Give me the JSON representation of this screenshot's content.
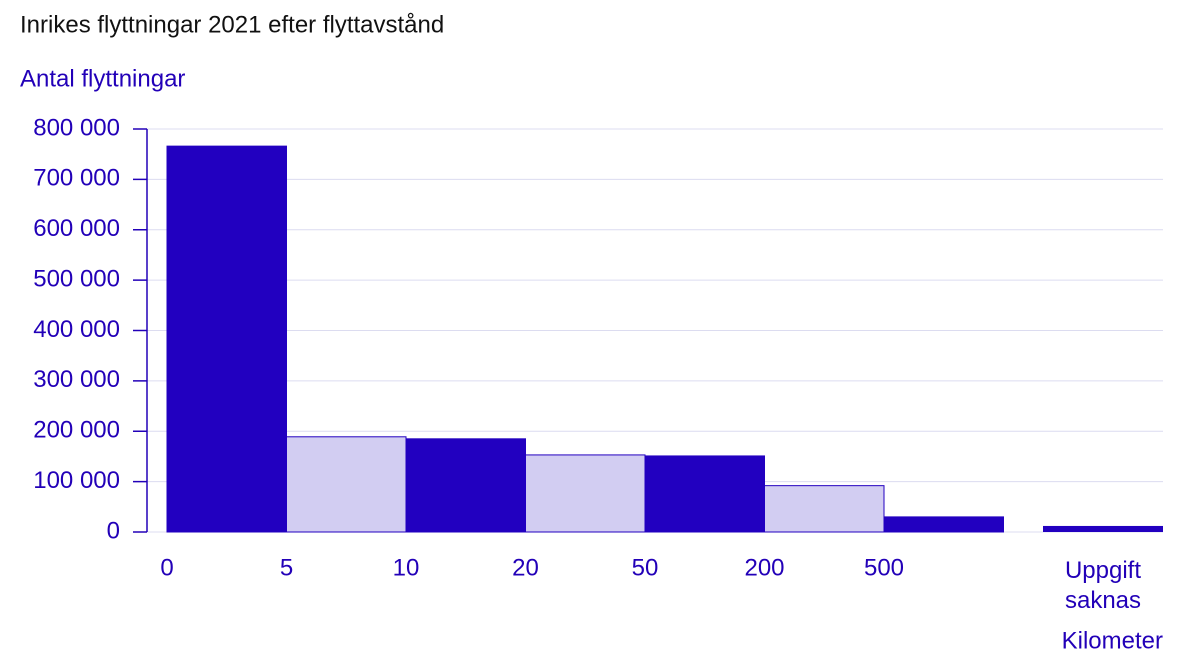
{
  "chart_data": {
    "type": "histogram",
    "title": "Inrikes flyttningar 2021 efter flyttavstånd",
    "y_label": "Antal flyttningar",
    "x_label": "Kilometer",
    "bins": [
      "0",
      "5",
      "10",
      "20",
      "50",
      "200",
      "500",
      null
    ],
    "values": [
      766000,
      189000,
      185000,
      153000,
      151000,
      92000,
      30000
    ],
    "colors": [
      "#2200c0",
      "#d2cdf2",
      "#2200c0",
      "#d2cdf2",
      "#2200c0",
      "#d2cdf2",
      "#2200c0"
    ],
    "missing": {
      "label": "Uppgift saknas",
      "value": 12000,
      "color": "#2200c0"
    },
    "ylim": [
      0,
      800000
    ],
    "yticks": [
      0,
      {
        "value": 100000,
        "label": "100 000"
      },
      {
        "value": 200000,
        "label": "200 000"
      },
      {
        "value": 300000,
        "label": "300 000"
      },
      {
        "value": 400000,
        "label": "400 000"
      },
      {
        "value": 500000,
        "label": "500 000"
      },
      {
        "value": 600000,
        "label": "600 000"
      },
      {
        "value": 700000,
        "label": "700 000"
      },
      {
        "value": 800000,
        "label": "800 000"
      }
    ],
    "grid": true
  }
}
